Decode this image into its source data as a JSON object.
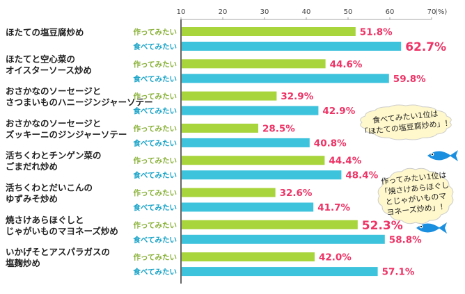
{
  "chart_data": {
    "type": "bar",
    "orientation": "horizontal",
    "xlim": [
      10,
      70
    ],
    "xticks": [
      10,
      20,
      30,
      40,
      50,
      60,
      70
    ],
    "unit_label": "(%)",
    "categories": [
      [
        "ほたての塩豆腐炒め"
      ],
      [
        "ほたてと空心菜の",
        "オイスターソース炒め"
      ],
      [
        "おさかなのソーセージと",
        "さつまいものハニージンジャーソテー"
      ],
      [
        "おさかなのソーセージと",
        "ズッキーニのジンジャーソテー"
      ],
      [
        "活ちくわとチンゲン菜の",
        "ごまだれ炒め"
      ],
      [
        "活ちくわとだいこんの",
        "ゆずみそ炒め"
      ],
      [
        "焼さけあらほぐしと",
        "じゃがいものマヨネーズ炒め"
      ],
      [
        "いかげそとアスパラガスの",
        "塩麹炒め"
      ]
    ],
    "series": [
      {
        "name": "作ってみたい",
        "color": "#a8d43c",
        "label_color": "#8ab23a",
        "values": [
          51.8,
          44.6,
          32.9,
          28.5,
          44.4,
          32.6,
          52.3,
          42.0
        ]
      },
      {
        "name": "食べてみたい",
        "color": "#3ec3dd",
        "label_color": "#1aa4c8",
        "values": [
          62.7,
          59.8,
          42.9,
          40.8,
          48.4,
          41.7,
          58.8,
          57.1
        ]
      }
    ],
    "highlight": [
      {
        "series": 1,
        "index": 0
      },
      {
        "series": 0,
        "index": 6
      }
    ],
    "callouts": [
      {
        "lines": [
          "食べてみたい1位は",
          "「ほたての塩豆腐炒め」！"
        ],
        "icon": "blue-fish-icon"
      },
      {
        "lines": [
          "作ってみたい1位は",
          "「焼さけあらほぐし",
          "とじゃがいものマ",
          "ヨネーズ炒め」！"
        ],
        "icon": "blue-fish-icon"
      }
    ],
    "colors": {
      "value_label": "#ee3366",
      "axis": "#333333",
      "bubble_fill": "#fff8cc",
      "bubble_stroke": "#cccccc",
      "fish": "#1a8fe0"
    }
  }
}
